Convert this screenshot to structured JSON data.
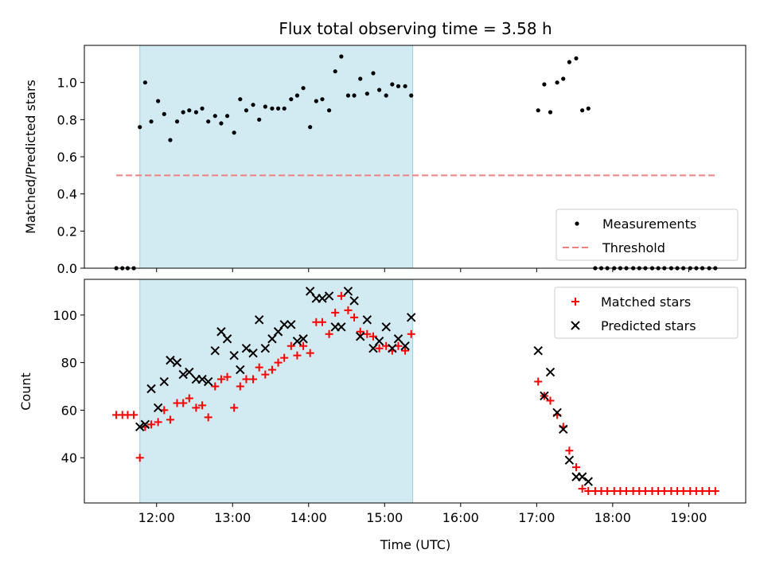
{
  "chart_data": {
    "type": "scatter",
    "title": "Flux total observing time = 3.58 h",
    "xlabel": "Time (UTC)",
    "x_ticks": [
      "12:00",
      "13:00",
      "14:00",
      "15:00",
      "16:00",
      "17:00",
      "18:00",
      "19:00"
    ],
    "xlim_hours": [
      11.05,
      19.75
    ],
    "highlight_span_hours": [
      11.78,
      15.37
    ],
    "highlight_color": "#add8e6",
    "panels": [
      {
        "id": "top",
        "ylabel": "Matched/Predicted stars",
        "ylim": [
          0,
          1.2
        ],
        "y_ticks": [
          "0.0",
          "0.2",
          "0.4",
          "0.6",
          "0.8",
          "1.0"
        ],
        "legend_position": "lower-right",
        "series": [
          {
            "name": "Measurements",
            "marker": "dot",
            "color": "#000000",
            "x": [
              11.47,
              11.55,
              11.62,
              11.7,
              11.78,
              11.85,
              11.93,
              12.02,
              12.1,
              12.18,
              12.27,
              12.35,
              12.43,
              12.52,
              12.6,
              12.68,
              12.77,
              12.85,
              12.93,
              13.02,
              13.1,
              13.18,
              13.27,
              13.35,
              13.43,
              13.52,
              13.6,
              13.68,
              13.77,
              13.85,
              13.93,
              14.02,
              14.1,
              14.18,
              14.27,
              14.35,
              14.43,
              14.52,
              14.6,
              14.68,
              14.77,
              14.85,
              14.93,
              15.02,
              15.1,
              15.18,
              15.27,
              15.35,
              17.02,
              17.1,
              17.18,
              17.27,
              17.35,
              17.43,
              17.52,
              17.6,
              17.68,
              17.77,
              17.85,
              17.93,
              18.02,
              18.1,
              18.18,
              18.27,
              18.35,
              18.43,
              18.52,
              18.6,
              18.68,
              18.77,
              18.85,
              18.93,
              19.02,
              19.1,
              19.18,
              19.27,
              19.35
            ],
            "y": [
              0,
              0,
              0,
              0,
              0.76,
              1.0,
              0.79,
              0.9,
              0.83,
              0.69,
              0.79,
              0.84,
              0.85,
              0.84,
              0.86,
              0.79,
              0.82,
              0.78,
              0.82,
              0.73,
              0.91,
              0.85,
              0.88,
              0.8,
              0.87,
              0.86,
              0.86,
              0.86,
              0.91,
              0.93,
              0.97,
              0.76,
              0.9,
              0.91,
              0.85,
              1.06,
              1.14,
              0.93,
              0.93,
              1.02,
              0.94,
              1.05,
              0.96,
              0.93,
              0.99,
              0.98,
              0.98,
              0.93,
              0.85,
              0.99,
              0.84,
              1.0,
              1.02,
              1.11,
              1.13,
              0.85,
              0.86,
              0,
              0,
              0,
              0,
              0,
              0,
              0,
              0,
              0,
              0,
              0,
              0,
              0,
              0,
              0,
              0,
              0,
              0,
              0,
              0
            ]
          },
          {
            "name": "Threshold",
            "marker": "dashed-line",
            "color": "#f08080",
            "x": [
              11.47,
              19.35
            ],
            "y": [
              0.5,
              0.5
            ]
          }
        ]
      },
      {
        "id": "bottom",
        "ylabel": "Count",
        "ylim": [
          21,
          115
        ],
        "y_ticks": [
          "40",
          "60",
          "80",
          "100"
        ],
        "legend_position": "upper-right",
        "series": [
          {
            "name": "Matched stars",
            "marker": "plus",
            "color": "#ff0000",
            "x": [
              11.47,
              11.55,
              11.62,
              11.7,
              11.78,
              11.85,
              11.93,
              12.02,
              12.1,
              12.18,
              12.27,
              12.35,
              12.43,
              12.52,
              12.6,
              12.68,
              12.77,
              12.85,
              12.93,
              13.02,
              13.1,
              13.18,
              13.27,
              13.35,
              13.43,
              13.52,
              13.6,
              13.68,
              13.77,
              13.85,
              13.93,
              14.02,
              14.1,
              14.18,
              14.27,
              14.35,
              14.43,
              14.52,
              14.6,
              14.68,
              14.77,
              14.85,
              14.93,
              15.02,
              15.1,
              15.18,
              15.27,
              15.35,
              17.02,
              17.1,
              17.18,
              17.27,
              17.35,
              17.43,
              17.52,
              17.6,
              17.68,
              17.77,
              17.85,
              17.93,
              18.02,
              18.1,
              18.18,
              18.27,
              18.35,
              18.43,
              18.52,
              18.6,
              18.68,
              18.77,
              18.85,
              18.93,
              19.02,
              19.1,
              19.18,
              19.27,
              19.35
            ],
            "y": [
              58,
              58,
              58,
              58,
              40,
              53,
              54,
              55,
              60,
              56,
              63,
              63,
              65,
              61,
              62,
              57,
              70,
              73,
              74,
              61,
              70,
              73,
              73,
              78,
              75,
              77,
              80,
              82,
              87,
              83,
              87,
              84,
              97,
              97,
              92,
              101,
              108,
              102,
              99,
              93,
              92,
              91,
              86,
              87,
              85,
              87,
              85,
              92,
              72,
              66,
              64,
              58,
              53,
              43,
              36,
              27,
              26,
              26,
              26,
              26,
              26,
              26,
              26,
              26,
              26,
              26,
              26,
              26,
              26,
              26,
              26,
              26,
              26,
              26,
              26,
              26,
              26
            ]
          },
          {
            "name": "Predicted stars",
            "marker": "x",
            "color": "#000000",
            "x": [
              11.78,
              11.85,
              11.93,
              12.02,
              12.1,
              12.18,
              12.27,
              12.35,
              12.43,
              12.52,
              12.6,
              12.68,
              12.77,
              12.85,
              12.93,
              13.02,
              13.1,
              13.18,
              13.27,
              13.35,
              13.43,
              13.52,
              13.6,
              13.68,
              13.77,
              13.85,
              13.93,
              14.02,
              14.1,
              14.18,
              14.27,
              14.35,
              14.43,
              14.52,
              14.6,
              14.68,
              14.77,
              14.85,
              14.93,
              15.02,
              15.1,
              15.18,
              15.27,
              15.35,
              17.02,
              17.1,
              17.18,
              17.27,
              17.35,
              17.43,
              17.52,
              17.6,
              17.68
            ],
            "y": [
              53,
              54,
              69,
              61,
              72,
              81,
              80,
              75,
              76,
              73,
              73,
              72,
              85,
              93,
              90,
              83,
              77,
              86,
              84,
              98,
              86,
              90,
              93,
              96,
              96,
              89,
              90,
              110,
              107,
              107,
              108,
              95,
              95,
              110,
              106,
              91,
              98,
              86,
              89,
              95,
              86,
              90,
              87,
              99,
              85,
              66,
              76,
              59,
              52,
              39,
              32,
              32,
              30
            ]
          }
        ]
      }
    ]
  }
}
